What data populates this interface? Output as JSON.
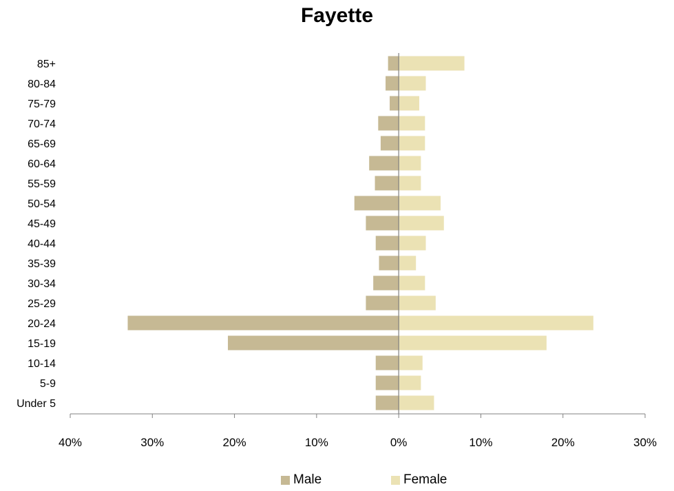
{
  "chart_data": {
    "type": "bar",
    "orientation": "horizontal",
    "title": "Fayette",
    "xlabel": "",
    "ylabel": "",
    "categories": [
      "85+",
      "80-84",
      "75-79",
      "70-74",
      "65-69",
      "60-64",
      "55-59",
      "50-54",
      "45-49",
      "40-44",
      "35-39",
      "30-34",
      "25-29",
      "20-24",
      "15-19",
      "10-14",
      "5-9",
      "Under 5"
    ],
    "series": [
      {
        "name": "Male",
        "color": "#c6b994",
        "values": [
          1.3,
          1.6,
          1.1,
          2.5,
          2.2,
          3.6,
          2.9,
          5.4,
          4.0,
          2.8,
          2.4,
          3.1,
          4.0,
          33.0,
          20.8,
          2.8,
          2.8,
          2.8
        ]
      },
      {
        "name": "Female",
        "color": "#ebe2b4",
        "values": [
          8.0,
          3.3,
          2.5,
          3.2,
          3.2,
          2.7,
          2.7,
          5.1,
          5.5,
          3.3,
          2.1,
          3.2,
          4.5,
          23.7,
          18.0,
          2.9,
          2.7,
          4.3
        ]
      }
    ],
    "xlim": [
      -40,
      30
    ],
    "x_ticks": [
      -40,
      -30,
      -20,
      -10,
      0,
      10,
      20,
      30
    ],
    "x_tick_labels": [
      "40%",
      "30%",
      "20%",
      "10%",
      "0%",
      "10%",
      "20%",
      "30%"
    ],
    "grid": false,
    "legend_position": "bottom"
  }
}
